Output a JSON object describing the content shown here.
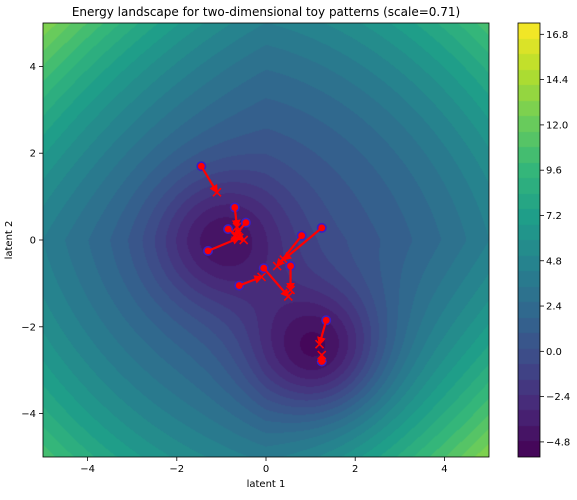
{
  "chart_data": {
    "type": "contour",
    "title": "Energy landscape for two-dimensional toy patterns (scale=0.71)",
    "xlabel": "latent 1",
    "ylabel": "latent 2",
    "xlim": [
      -5,
      5
    ],
    "ylim": [
      -5,
      5
    ],
    "xticks": [
      -4,
      -2,
      0,
      2,
      4
    ],
    "xtick_labels": [
      "−4",
      "−2",
      "0",
      "2",
      "4"
    ],
    "yticks": [
      -4,
      -2,
      0,
      2,
      4
    ],
    "ytick_labels": [
      "−4",
      "−2",
      "0",
      "2",
      "4"
    ],
    "grid": false,
    "colormap": "viridis",
    "levels": 28,
    "colorbar": {
      "vmin": -5.6,
      "vmax": 17.4,
      "ticks": [
        -4.8,
        -2.4,
        0.0,
        2.4,
        4.8,
        7.2,
        9.6,
        12.0,
        14.4,
        16.8
      ],
      "tick_labels": [
        "−4.8",
        "−2.4",
        "0.0",
        "2.4",
        "4.8",
        "7.2",
        "9.6",
        "12.0",
        "14.4",
        "16.8"
      ]
    },
    "energy_minima": [
      {
        "x": -1.0,
        "y": 0.0,
        "depth": 4.8
      },
      {
        "x": 1.2,
        "y": -2.6,
        "depth": 6.8
      }
    ],
    "trajectories": [
      {
        "start": [
          -1.45,
          1.7
        ],
        "end": [
          -1.1,
          1.1
        ]
      },
      {
        "start": [
          -0.7,
          0.75
        ],
        "end": [
          -0.65,
          0.3
        ]
      },
      {
        "start": [
          -0.45,
          0.4
        ],
        "end": [
          -0.7,
          0.1
        ]
      },
      {
        "start": [
          -0.85,
          0.25
        ],
        "end": [
          -0.5,
          0.0
        ]
      },
      {
        "start": [
          -1.3,
          -0.25
        ],
        "end": [
          -0.6,
          0.05
        ]
      },
      {
        "start": [
          -0.6,
          -1.05
        ],
        "end": [
          -0.1,
          -0.85
        ]
      },
      {
        "start": [
          -0.05,
          -0.65
        ],
        "end": [
          0.5,
          -1.3
        ]
      },
      {
        "start": [
          0.8,
          0.1
        ],
        "end": [
          0.25,
          -0.6
        ]
      },
      {
        "start": [
          1.25,
          0.28
        ],
        "end": [
          0.4,
          -0.45
        ]
      },
      {
        "start": [
          0.55,
          -0.6
        ],
        "end": [
          0.55,
          -1.15
        ]
      },
      {
        "start": [
          1.35,
          -1.85
        ],
        "end": [
          1.2,
          -2.4
        ]
      },
      {
        "start": [
          1.25,
          -2.8
        ],
        "end": [
          1.25,
          -2.65
        ]
      }
    ],
    "marker_colors": {
      "start": "#3a1fc2",
      "end": "#ff0000",
      "arrow": "#ff0000"
    }
  }
}
